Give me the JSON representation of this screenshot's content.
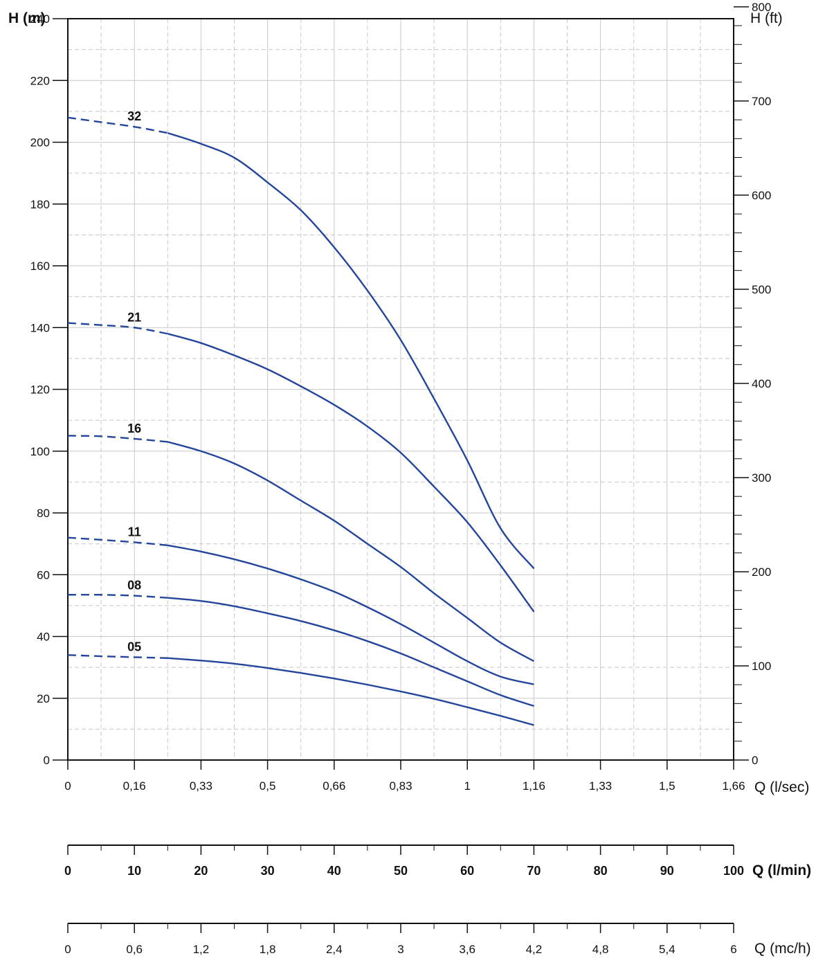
{
  "chart_data": {
    "type": "line",
    "left_axis": {
      "label": "H (m)",
      "ticks": [
        "0",
        "20",
        "40",
        "60",
        "80",
        "100",
        "120",
        "140",
        "160",
        "180",
        "200",
        "220",
        "240"
      ],
      "range": [
        0,
        240
      ]
    },
    "right_axis": {
      "label": "H (ft)",
      "ticks": [
        "0",
        "100",
        "200",
        "300",
        "400",
        "500",
        "600",
        "700",
        "800"
      ],
      "range": [
        0,
        800
      ]
    },
    "x_axis_lsec": {
      "label": "Q (l/sec)",
      "ticks": [
        "0",
        "0,16",
        "0,33",
        "0,5",
        "0,66",
        "0,83",
        "1",
        "1,16",
        "1,33",
        "1,5",
        "1,66"
      ]
    },
    "x_axis_lmin": {
      "label": "Q (l/min)",
      "ticks": [
        "0",
        "10",
        "20",
        "30",
        "40",
        "50",
        "60",
        "70",
        "80",
        "90",
        "100"
      ],
      "range": [
        0,
        100
      ]
    },
    "x_axis_mch": {
      "label": "Q (mc/h)",
      "ticks": [
        "0",
        "0,6",
        "1,2",
        "1,8",
        "2,4",
        "3",
        "3,6",
        "4,2",
        "4,8",
        "5,4",
        "6"
      ]
    },
    "grid": true,
    "series": [
      {
        "name": "32",
        "dashed_until": 15,
        "points": [
          [
            0,
            208
          ],
          [
            5,
            206.5
          ],
          [
            10,
            205
          ],
          [
            15,
            203
          ],
          [
            20,
            199.5
          ],
          [
            25,
            195
          ],
          [
            30,
            187
          ],
          [
            35,
            178
          ],
          [
            40,
            166
          ],
          [
            45,
            152
          ],
          [
            50,
            136
          ],
          [
            55,
            117
          ],
          [
            60,
            97
          ],
          [
            65,
            75
          ],
          [
            70,
            62
          ]
        ]
      },
      {
        "name": "21",
        "dashed_until": 15,
        "points": [
          [
            0,
            141.5
          ],
          [
            5,
            140.8
          ],
          [
            10,
            140
          ],
          [
            15,
            138
          ],
          [
            20,
            135
          ],
          [
            25,
            131
          ],
          [
            30,
            126.5
          ],
          [
            35,
            121
          ],
          [
            40,
            115
          ],
          [
            45,
            108
          ],
          [
            50,
            99.5
          ],
          [
            55,
            88.5
          ],
          [
            60,
            77
          ],
          [
            65,
            63
          ],
          [
            70,
            48
          ]
        ]
      },
      {
        "name": "16",
        "dashed_until": 15,
        "points": [
          [
            0,
            105
          ],
          [
            5,
            104.8
          ],
          [
            10,
            104
          ],
          [
            15,
            103
          ],
          [
            20,
            100
          ],
          [
            25,
            96
          ],
          [
            30,
            90.5
          ],
          [
            35,
            84
          ],
          [
            40,
            77.5
          ],
          [
            45,
            70
          ],
          [
            50,
            62.5
          ],
          [
            55,
            54
          ],
          [
            60,
            46
          ],
          [
            65,
            38
          ],
          [
            70,
            32
          ]
        ]
      },
      {
        "name": "11",
        "dashed_until": 15,
        "points": [
          [
            0,
            72
          ],
          [
            5,
            71.3
          ],
          [
            10,
            70.5
          ],
          [
            15,
            69.5
          ],
          [
            20,
            67.5
          ],
          [
            25,
            65
          ],
          [
            30,
            62
          ],
          [
            35,
            58.5
          ],
          [
            40,
            54.5
          ],
          [
            45,
            49.5
          ],
          [
            50,
            44
          ],
          [
            55,
            38
          ],
          [
            60,
            32
          ],
          [
            65,
            27
          ],
          [
            70,
            24.5
          ]
        ]
      },
      {
        "name": "08",
        "dashed_until": 15,
        "points": [
          [
            0,
            53.5
          ],
          [
            5,
            53.5
          ],
          [
            10,
            53.2
          ],
          [
            15,
            52.5
          ],
          [
            20,
            51.5
          ],
          [
            25,
            49.8
          ],
          [
            30,
            47.5
          ],
          [
            35,
            45
          ],
          [
            40,
            42
          ],
          [
            45,
            38.5
          ],
          [
            50,
            34.5
          ],
          [
            55,
            30
          ],
          [
            60,
            25.5
          ],
          [
            65,
            21
          ],
          [
            70,
            17.5
          ]
        ]
      },
      {
        "name": "05",
        "dashed_until": 15,
        "points": [
          [
            0,
            34
          ],
          [
            5,
            33.6
          ],
          [
            10,
            33.3
          ],
          [
            15,
            33
          ],
          [
            20,
            32.2
          ],
          [
            25,
            31.2
          ],
          [
            30,
            29.8
          ],
          [
            35,
            28.2
          ],
          [
            40,
            26.4
          ],
          [
            45,
            24.4
          ],
          [
            50,
            22.2
          ],
          [
            55,
            19.8
          ],
          [
            60,
            17.1
          ],
          [
            65,
            14.3
          ],
          [
            70,
            11.3
          ]
        ]
      }
    ],
    "line_color": "#23459b",
    "grid_color": "#c8c8c8"
  }
}
